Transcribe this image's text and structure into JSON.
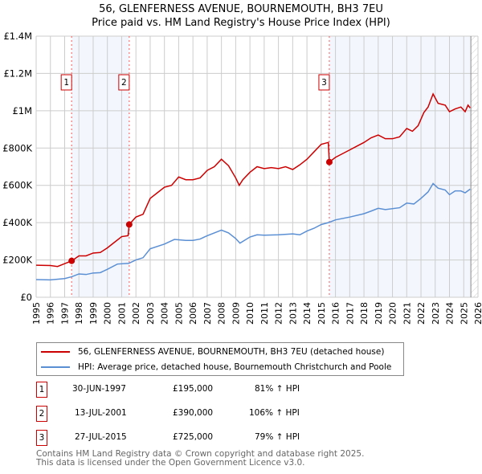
{
  "chart_data": {
    "type": "line",
    "title": "56, GLENFERNESS AVENUE, BOURNEMOUTH, BH3 7EU",
    "subtitle": "Price paid vs. HM Land Registry's House Price Index (HPI)",
    "xlim": [
      1995,
      2026
    ],
    "ylim": [
      0,
      1400000
    ],
    "x_ticks": [
      "1995",
      "1996",
      "1997",
      "1998",
      "1999",
      "2000",
      "2001",
      "2002",
      "2003",
      "2004",
      "2005",
      "2006",
      "2007",
      "2008",
      "2009",
      "2010",
      "2011",
      "2012",
      "2013",
      "2014",
      "2015",
      "2016",
      "2017",
      "2018",
      "2019",
      "2020",
      "2021",
      "2022",
      "2023",
      "2024",
      "2025",
      "2026"
    ],
    "y_ticks": [
      {
        "v": 0,
        "label": "£0"
      },
      {
        "v": 200000,
        "label": "£200K"
      },
      {
        "v": 400000,
        "label": "£400K"
      },
      {
        "v": 600000,
        "label": "£600K"
      },
      {
        "v": 800000,
        "label": "£800K"
      },
      {
        "v": 1000000,
        "label": "£1M"
      },
      {
        "v": 1200000,
        "label": "£1.2M"
      },
      {
        "v": 1400000,
        "label": "£1.4M"
      }
    ],
    "grid": true,
    "forecast_hatch_from": 2025.5,
    "series": [
      {
        "name": "56, GLENFERNESS AVENUE, BOURNEMOUTH, BH3 7EU (detached house)",
        "color": "#cc0000",
        "points": [
          [
            1995,
            172000
          ],
          [
            1996,
            170000
          ],
          [
            1996.5,
            165000
          ],
          [
            1997,
            180000
          ],
          [
            1997.5,
            195000
          ],
          [
            1998,
            222000
          ],
          [
            1998.5,
            222000
          ],
          [
            1999,
            237000
          ],
          [
            1999.5,
            240000
          ],
          [
            2000,
            265000
          ],
          [
            2000.5,
            295000
          ],
          [
            2001,
            325000
          ],
          [
            2001.45,
            330000
          ],
          [
            2001.53,
            390000
          ],
          [
            2002,
            430000
          ],
          [
            2002.5,
            445000
          ],
          [
            2003,
            530000
          ],
          [
            2003.5,
            560000
          ],
          [
            2004,
            590000
          ],
          [
            2004.5,
            600000
          ],
          [
            2005,
            645000
          ],
          [
            2005.5,
            630000
          ],
          [
            2006,
            630000
          ],
          [
            2006.5,
            640000
          ],
          [
            2007,
            680000
          ],
          [
            2007.5,
            700000
          ],
          [
            2008,
            740000
          ],
          [
            2008.5,
            705000
          ],
          [
            2009,
            640000
          ],
          [
            2009.25,
            600000
          ],
          [
            2009.5,
            630000
          ],
          [
            2010,
            670000
          ],
          [
            2010.5,
            700000
          ],
          [
            2011,
            690000
          ],
          [
            2011.5,
            695000
          ],
          [
            2012,
            690000
          ],
          [
            2012.5,
            700000
          ],
          [
            2013,
            685000
          ],
          [
            2013.5,
            710000
          ],
          [
            2014,
            740000
          ],
          [
            2014.5,
            780000
          ],
          [
            2015,
            820000
          ],
          [
            2015.5,
            830000
          ],
          [
            2015.57,
            725000
          ],
          [
            2016,
            750000
          ],
          [
            2016.5,
            770000
          ],
          [
            2017,
            790000
          ],
          [
            2017.5,
            810000
          ],
          [
            2018,
            830000
          ],
          [
            2018.5,
            855000
          ],
          [
            2019,
            870000
          ],
          [
            2019.5,
            850000
          ],
          [
            2020,
            850000
          ],
          [
            2020.5,
            860000
          ],
          [
            2021,
            905000
          ],
          [
            2021.4,
            890000
          ],
          [
            2021.8,
            920000
          ],
          [
            2022.2,
            990000
          ],
          [
            2022.5,
            1020000
          ],
          [
            2022.85,
            1090000
          ],
          [
            2023.2,
            1040000
          ],
          [
            2023.7,
            1030000
          ],
          [
            2024,
            995000
          ],
          [
            2024.4,
            1010000
          ],
          [
            2024.8,
            1020000
          ],
          [
            2025.1,
            995000
          ],
          [
            2025.3,
            1030000
          ],
          [
            2025.45,
            1015000
          ]
        ]
      },
      {
        "name": "HPI: Average price, detached house, Bournemouth Christchurch and Poole",
        "color": "#5b8fd4",
        "points": [
          [
            1995,
            95000
          ],
          [
            1996,
            93000
          ],
          [
            1997,
            100000
          ],
          [
            1997.5,
            110000
          ],
          [
            1998,
            125000
          ],
          [
            1998.5,
            122000
          ],
          [
            1999,
            130000
          ],
          [
            1999.5,
            132000
          ],
          [
            2000,
            150000
          ],
          [
            2000.7,
            178000
          ],
          [
            2001.5,
            182000
          ],
          [
            2002,
            200000
          ],
          [
            2002.5,
            212000
          ],
          [
            2003,
            260000
          ],
          [
            2004,
            285000
          ],
          [
            2004.7,
            310000
          ],
          [
            2005.5,
            305000
          ],
          [
            2006,
            305000
          ],
          [
            2006.5,
            312000
          ],
          [
            2007,
            330000
          ],
          [
            2007.5,
            345000
          ],
          [
            2008,
            360000
          ],
          [
            2008.5,
            345000
          ],
          [
            2009,
            315000
          ],
          [
            2009.3,
            290000
          ],
          [
            2010,
            323000
          ],
          [
            2010.5,
            335000
          ],
          [
            2011,
            333000
          ],
          [
            2012,
            335000
          ],
          [
            2013,
            340000
          ],
          [
            2013.5,
            335000
          ],
          [
            2014,
            355000
          ],
          [
            2014.5,
            370000
          ],
          [
            2015,
            390000
          ],
          [
            2015.5,
            400000
          ],
          [
            2016,
            415000
          ],
          [
            2017,
            430000
          ],
          [
            2018,
            448000
          ],
          [
            2018.5,
            462000
          ],
          [
            2019,
            477000
          ],
          [
            2019.5,
            470000
          ],
          [
            2020.5,
            480000
          ],
          [
            2021,
            505000
          ],
          [
            2021.5,
            500000
          ],
          [
            2022,
            530000
          ],
          [
            2022.5,
            565000
          ],
          [
            2022.85,
            610000
          ],
          [
            2023.2,
            585000
          ],
          [
            2023.7,
            575000
          ],
          [
            2024,
            550000
          ],
          [
            2024.4,
            570000
          ],
          [
            2024.8,
            570000
          ],
          [
            2025.1,
            560000
          ],
          [
            2025.45,
            580000
          ]
        ]
      }
    ],
    "sales": [
      {
        "id": "1",
        "year": 1997.49,
        "price": 195000,
        "date": "30-JUN-1997",
        "price_label": "£195,000",
        "hpi": "81% ↑ HPI"
      },
      {
        "id": "2",
        "year": 2001.53,
        "price": 390000,
        "date": "13-JUL-2001",
        "price_label": "£390,000",
        "hpi": "106% ↑ HPI"
      },
      {
        "id": "3",
        "year": 2015.57,
        "price": 725000,
        "date": "27-JUL-2015",
        "price_label": "£725,000",
        "hpi": "79% ↑ HPI"
      }
    ]
  },
  "footer": {
    "line1": "Contains HM Land Registry data © Crown copyright and database right 2025.",
    "line2": "This data is licensed under the Open Government Licence v3.0."
  }
}
